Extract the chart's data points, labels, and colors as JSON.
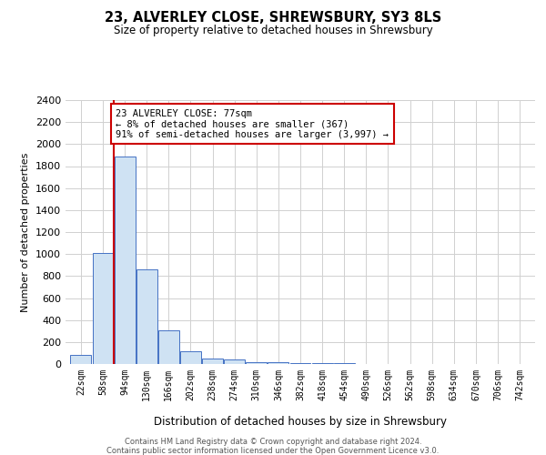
{
  "title_line1": "23, ALVERLEY CLOSE, SHREWSBURY, SY3 8LS",
  "title_line2": "Size of property relative to detached houses in Shrewsbury",
  "xlabel": "Distribution of detached houses by size in Shrewsbury",
  "ylabel": "Number of detached properties",
  "bar_labels": [
    "22sqm",
    "58sqm",
    "94sqm",
    "130sqm",
    "166sqm",
    "202sqm",
    "238sqm",
    "274sqm",
    "310sqm",
    "346sqm",
    "382sqm",
    "418sqm",
    "454sqm",
    "490sqm",
    "526sqm",
    "562sqm",
    "598sqm",
    "634sqm",
    "670sqm",
    "706sqm",
    "742sqm"
  ],
  "bar_values": [
    80,
    1010,
    1890,
    860,
    310,
    120,
    50,
    45,
    20,
    15,
    10,
    8,
    5,
    3,
    3,
    2,
    2,
    1,
    1,
    1,
    1
  ],
  "bar_color": "#cfe2f3",
  "bar_edge_color": "#4472c4",
  "ylim": [
    0,
    2400
  ],
  "yticks": [
    0,
    200,
    400,
    600,
    800,
    1000,
    1200,
    1400,
    1600,
    1800,
    2000,
    2200,
    2400
  ],
  "property_line_bin_index": 1.5,
  "annotation_text": "23 ALVERLEY CLOSE: 77sqm\n← 8% of detached houses are smaller (367)\n91% of semi-detached houses are larger (3,997) →",
  "annotation_box_color": "#ffffff",
  "annotation_box_edge_color": "#cc0000",
  "vline_color": "#cc0000",
  "footer_line1": "Contains HM Land Registry data © Crown copyright and database right 2024.",
  "footer_line2": "Contains public sector information licensed under the Open Government Licence v3.0.",
  "bg_color": "#ffffff",
  "grid_color": "#d0d0d0"
}
